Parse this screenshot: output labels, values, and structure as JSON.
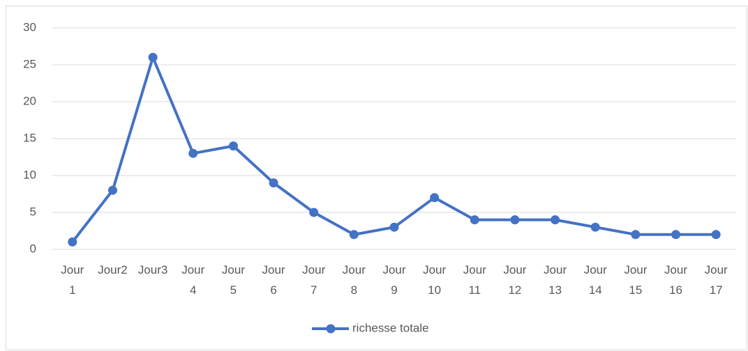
{
  "chart_data": {
    "type": "line",
    "categories": [
      "Jour 1",
      "Jour2",
      "Jour3",
      "Jour 4",
      "Jour 5",
      "Jour 6",
      "Jour 7",
      "Jour 8",
      "Jour 9",
      "Jour 10",
      "Jour 11",
      "Jour 12",
      "Jour 13",
      "Jour 14",
      "Jour 15",
      "Jour 16",
      "Jour 17"
    ],
    "series": [
      {
        "name": "richesse totale",
        "color": "#4472c4",
        "values": [
          1,
          8,
          26,
          13,
          14,
          9,
          5,
          2,
          3,
          7,
          4,
          4,
          4,
          3,
          2,
          2,
          2
        ]
      }
    ],
    "ylim": [
      0,
      30
    ],
    "yticks": [
      0,
      5,
      10,
      15,
      20,
      25,
      30
    ],
    "grid": true,
    "legend": "bottom"
  }
}
